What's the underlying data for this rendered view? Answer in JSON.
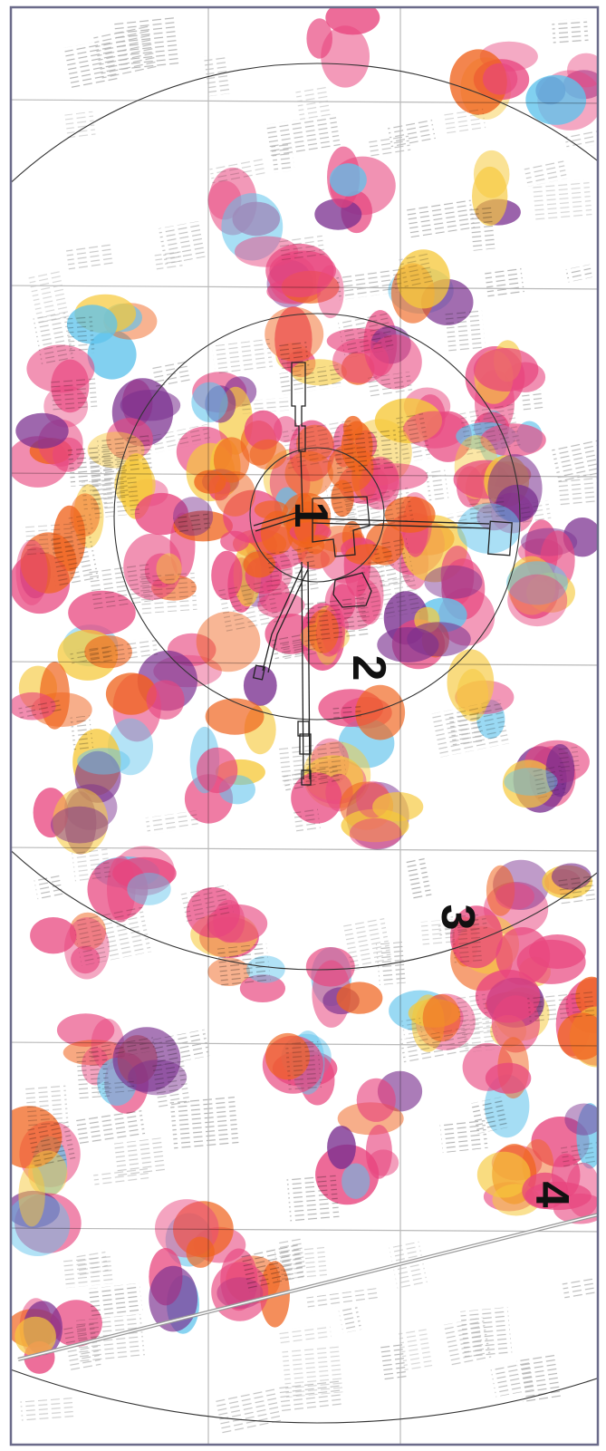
{
  "map": {
    "labels": [
      "1",
      "2",
      "3",
      "4"
    ],
    "colors": {
      "pink": "#e8457e",
      "purple": "#7a2f8f",
      "blue": "#5fc3ec",
      "yellow": "#f6c93c",
      "orange": "#f0641e",
      "grid": "#b9b9b9",
      "hatch": "#b0b0b0",
      "ring": "#333333",
      "frame": "#6b6b8a"
    }
  }
}
